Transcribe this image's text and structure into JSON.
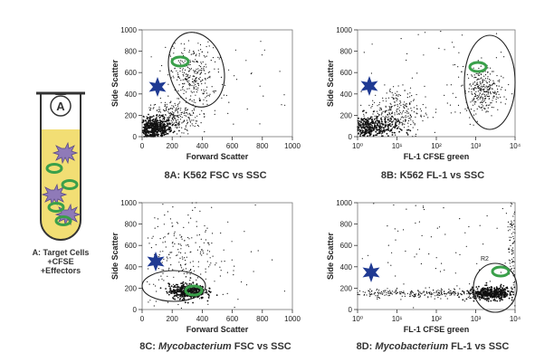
{
  "colors": {
    "tube_fill": "#f2de74",
    "tube_outline": "#333333",
    "star_blue": "#1f3a93",
    "cell_green": "#3aa04a",
    "effector_purple": "#8f7ab8",
    "dots": "#111111"
  },
  "tube": {
    "label": "A",
    "caption_lines": [
      "A: Target Cells",
      "+CFSE",
      "+Effectors"
    ]
  },
  "chart_data": [
    {
      "id": "8A",
      "type": "scatter",
      "title": "8A: K562 FSC vs SSC",
      "title_parts": [
        {
          "text": "8A: K562 FSC vs SSC",
          "italic": false
        }
      ],
      "xlabel": "Forward Scatter",
      "ylabel": "Side Scatter",
      "x_scale": "linear",
      "xlim": [
        0,
        1000
      ],
      "ylim": [
        0,
        1000
      ],
      "x_ticks": [
        0,
        200,
        400,
        600,
        800,
        1000
      ],
      "x_tick_labels": [
        "0",
        "200",
        "400",
        "600",
        "800",
        "1000"
      ],
      "y_ticks": [
        0,
        200,
        400,
        600,
        800,
        1000
      ],
      "y_tick_labels": [
        "0",
        "200",
        "400",
        "600",
        "800",
        "1000"
      ],
      "gate_label": "",
      "clusters": [
        {
          "cx": 80,
          "cy": 70,
          "sx": 60,
          "sy": 55,
          "n": 520,
          "dens": "dense"
        },
        {
          "cx": 200,
          "cy": 180,
          "sx": 90,
          "sy": 80,
          "n": 260,
          "dens": "medium"
        },
        {
          "cx": 330,
          "cy": 560,
          "sx": 70,
          "sy": 140,
          "n": 260,
          "dens": "medium"
        },
        {
          "cx": 500,
          "cy": 500,
          "sx": 250,
          "sy": 250,
          "n": 80,
          "dens": "sparse"
        }
      ]
    },
    {
      "id": "8B",
      "type": "scatter",
      "title": "8B: K562 FL-1 vs SSC",
      "title_parts": [
        {
          "text": "8B: K562 FL-1 vs SSC",
          "italic": false
        }
      ],
      "xlabel": "FL-1 CFSE green",
      "ylabel": "Side Scatter",
      "x_scale": "log",
      "xlim": [
        1,
        10000
      ],
      "ylim": [
        0,
        1000
      ],
      "x_ticks": [
        1,
        10,
        100,
        1000,
        10000
      ],
      "x_tick_labels": [
        "10⁰",
        "10¹",
        "10²",
        "10³",
        "10⁴"
      ],
      "y_ticks": [
        0,
        200,
        400,
        600,
        800,
        1000
      ],
      "y_tick_labels": [
        "0",
        "200",
        "400",
        "600",
        "800",
        "1000"
      ],
      "gate_label": "",
      "clusters": [
        {
          "cx": 2,
          "cy": 80,
          "sx": 0.35,
          "sy": 60,
          "n": 420,
          "dens": "dense"
        },
        {
          "cx": 10,
          "cy": 230,
          "sx": 0.35,
          "sy": 120,
          "n": 260,
          "dens": "medium"
        },
        {
          "cx": 1500,
          "cy": 440,
          "sx": 0.22,
          "sy": 110,
          "n": 280,
          "dens": "medium"
        },
        {
          "cx": 200,
          "cy": 500,
          "sx": 1.3,
          "sy": 280,
          "n": 90,
          "dens": "sparse"
        }
      ]
    },
    {
      "id": "8C",
      "type": "scatter",
      "title": "8C: Mycobacterium FSC vs SSC",
      "title_parts": [
        {
          "text": "8C: ",
          "italic": false
        },
        {
          "text": "Mycobacterium",
          "italic": true
        },
        {
          "text": " FSC vs SSC",
          "italic": false
        }
      ],
      "xlabel": "Forward Scatter",
      "ylabel": "Side Scatter",
      "x_scale": "linear",
      "xlim": [
        0,
        1000
      ],
      "ylim": [
        0,
        1000
      ],
      "x_ticks": [
        0,
        200,
        400,
        600,
        800,
        1000
      ],
      "x_tick_labels": [
        "0",
        "200",
        "400",
        "600",
        "800",
        "1000"
      ],
      "y_ticks": [
        0,
        200,
        400,
        600,
        800,
        1000
      ],
      "y_tick_labels": [
        "0",
        "200",
        "400",
        "600",
        "800",
        "1000"
      ],
      "gate_label": "",
      "clusters": [
        {
          "cx": 300,
          "cy": 170,
          "sx": 60,
          "sy": 35,
          "n": 420,
          "dens": "dense"
        },
        {
          "cx": 260,
          "cy": 500,
          "sx": 120,
          "sy": 260,
          "n": 200,
          "dens": "sparse"
        },
        {
          "cx": 550,
          "cy": 300,
          "sx": 250,
          "sy": 250,
          "n": 60,
          "dens": "sparse"
        }
      ]
    },
    {
      "id": "8D",
      "type": "scatter",
      "title": "8D: Mycobacterium FL-1 vs SSC",
      "title_parts": [
        {
          "text": "8D: ",
          "italic": false
        },
        {
          "text": "Mycobacterium",
          "italic": true
        },
        {
          "text": " FL-1 vs SSC",
          "italic": false
        }
      ],
      "xlabel": "FL-1 CFSE green",
      "ylabel": "Side Scatter",
      "x_scale": "log",
      "xlim": [
        1,
        10000
      ],
      "ylim": [
        0,
        1000
      ],
      "x_ticks": [
        1,
        10,
        100,
        1000,
        10000
      ],
      "x_tick_labels": [
        "10⁰",
        "10¹",
        "10²",
        "10³",
        "10⁴"
      ],
      "y_ticks": [
        0,
        200,
        400,
        600,
        800,
        1000
      ],
      "y_tick_labels": [
        "0",
        "200",
        "400",
        "600",
        "800",
        "1000"
      ],
      "gate_label": "R2",
      "clusters": [
        {
          "cx": 2500,
          "cy": 150,
          "sx": 0.3,
          "sy": 30,
          "n": 420,
          "dens": "dense"
        },
        {
          "cx": 40,
          "cy": 150,
          "sx": 1.2,
          "sy": 20,
          "n": 320,
          "dens": "medium"
        },
        {
          "cx": 9000,
          "cy": 600,
          "sx": 0.08,
          "sy": 250,
          "n": 120,
          "dens": "medium"
        },
        {
          "cx": 300,
          "cy": 600,
          "sx": 1.3,
          "sy": 300,
          "n": 90,
          "dens": "sparse"
        }
      ]
    }
  ]
}
